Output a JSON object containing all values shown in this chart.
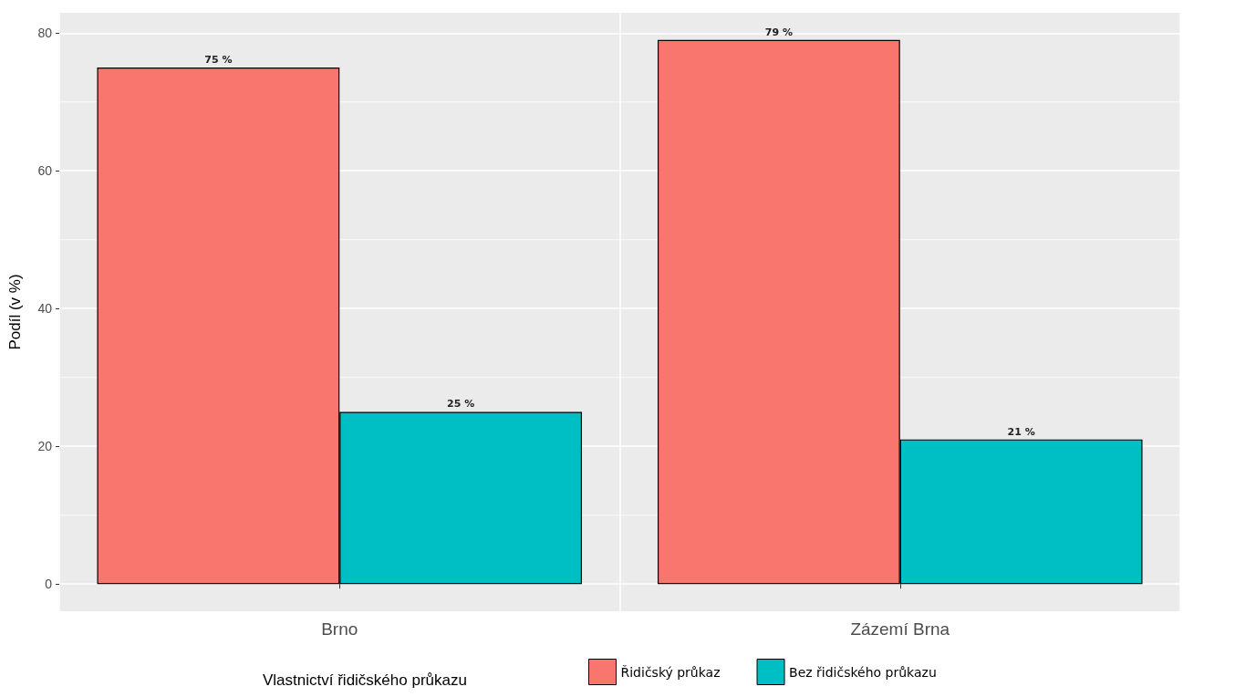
{
  "chart_data": {
    "type": "bar",
    "ylabel": "Podíl (v %)",
    "legend_title": "Vlastnictví řidičského průkazu",
    "categories": [
      "Brno",
      "Zázemí Brna"
    ],
    "series": [
      {
        "name": "Řidičský průkaz",
        "color": "#f8766d",
        "values": [
          75,
          79
        ],
        "value_labels": [
          "75 %",
          "79 %"
        ]
      },
      {
        "name": "Bez řidičského průkazu",
        "color": "#00bfc4",
        "values": [
          25,
          21
        ],
        "value_labels": [
          "25 %",
          "21 %"
        ]
      }
    ],
    "ylim": [
      -3.95,
      82.95
    ],
    "yticks": [
      0,
      20,
      40,
      60,
      80
    ],
    "grid": true,
    "legend": "bottom"
  }
}
